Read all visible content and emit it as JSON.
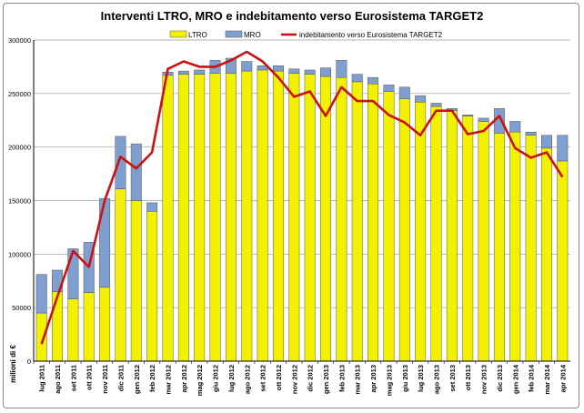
{
  "chart_data": {
    "type": "bar",
    "stacked": true,
    "title": "Interventi LTRO, MRO e indebitamento verso Eurosistema TARGET2",
    "ylabel": "milioni di €",
    "xlabel": "",
    "ylim": [
      0,
      300000
    ],
    "yticks": [
      "0",
      "50000",
      "100000",
      "150000",
      "200000",
      "250000",
      "300000"
    ],
    "grid": true,
    "legend_position": "top",
    "categories": [
      "lug 2011",
      "ago 2011",
      "set 2011",
      "ott 2011",
      "nov 2011",
      "dic 2011",
      "gen 2012",
      "feb 2012",
      "mar 2012",
      "apr 2012",
      "mag 2012",
      "giu 2012",
      "lug 2012",
      "ago 2012",
      "set 2012",
      "ott 2012",
      "nov 2012",
      "dic 2012",
      "gen 2013",
      "feb 2013",
      "mar 2013",
      "apr 2013",
      "mag 2013",
      "giu 2013",
      "lug 2013",
      "ago 2013",
      "set 2013",
      "ott 2013",
      "nov 2013",
      "dic 2013",
      "gen 2014",
      "feb 2014",
      "mar 2014",
      "apr 2014"
    ],
    "series": [
      {
        "name": "LTRO",
        "type": "bar",
        "color": "#f2f200",
        "values": [
          45000,
          65000,
          58000,
          64000,
          69000,
          161000,
          150000,
          140000,
          267000,
          268000,
          268000,
          269000,
          269000,
          271000,
          272000,
          271000,
          269000,
          268000,
          266000,
          265000,
          261000,
          259000,
          252000,
          245000,
          242000,
          238000,
          234000,
          229000,
          224000,
          213000,
          214000,
          211000,
          199000,
          187000
        ]
      },
      {
        "name": "MRO",
        "type": "bar",
        "color": "#7f9fd0",
        "values": [
          36000,
          20000,
          47000,
          47000,
          83000,
          49000,
          53000,
          8000,
          3000,
          3000,
          4000,
          12000,
          14000,
          9000,
          4000,
          5000,
          4000,
          4000,
          8000,
          16000,
          7000,
          6000,
          6000,
          11000,
          6000,
          3000,
          2000,
          1000,
          3000,
          23000,
          10000,
          3000,
          12000,
          24000
        ]
      },
      {
        "name": "indebitamento verso Eurosistema TARGET2",
        "type": "line",
        "color": "#cc1111",
        "values": [
          16000,
          60000,
          103000,
          88000,
          150000,
          191000,
          180000,
          195000,
          273000,
          280000,
          275000,
          275000,
          281000,
          289000,
          280000,
          265000,
          247000,
          252000,
          229000,
          256000,
          243000,
          243000,
          230000,
          223000,
          211000,
          234000,
          234000,
          212000,
          215000,
          229000,
          199000,
          190000,
          195000,
          172000
        ]
      }
    ]
  }
}
